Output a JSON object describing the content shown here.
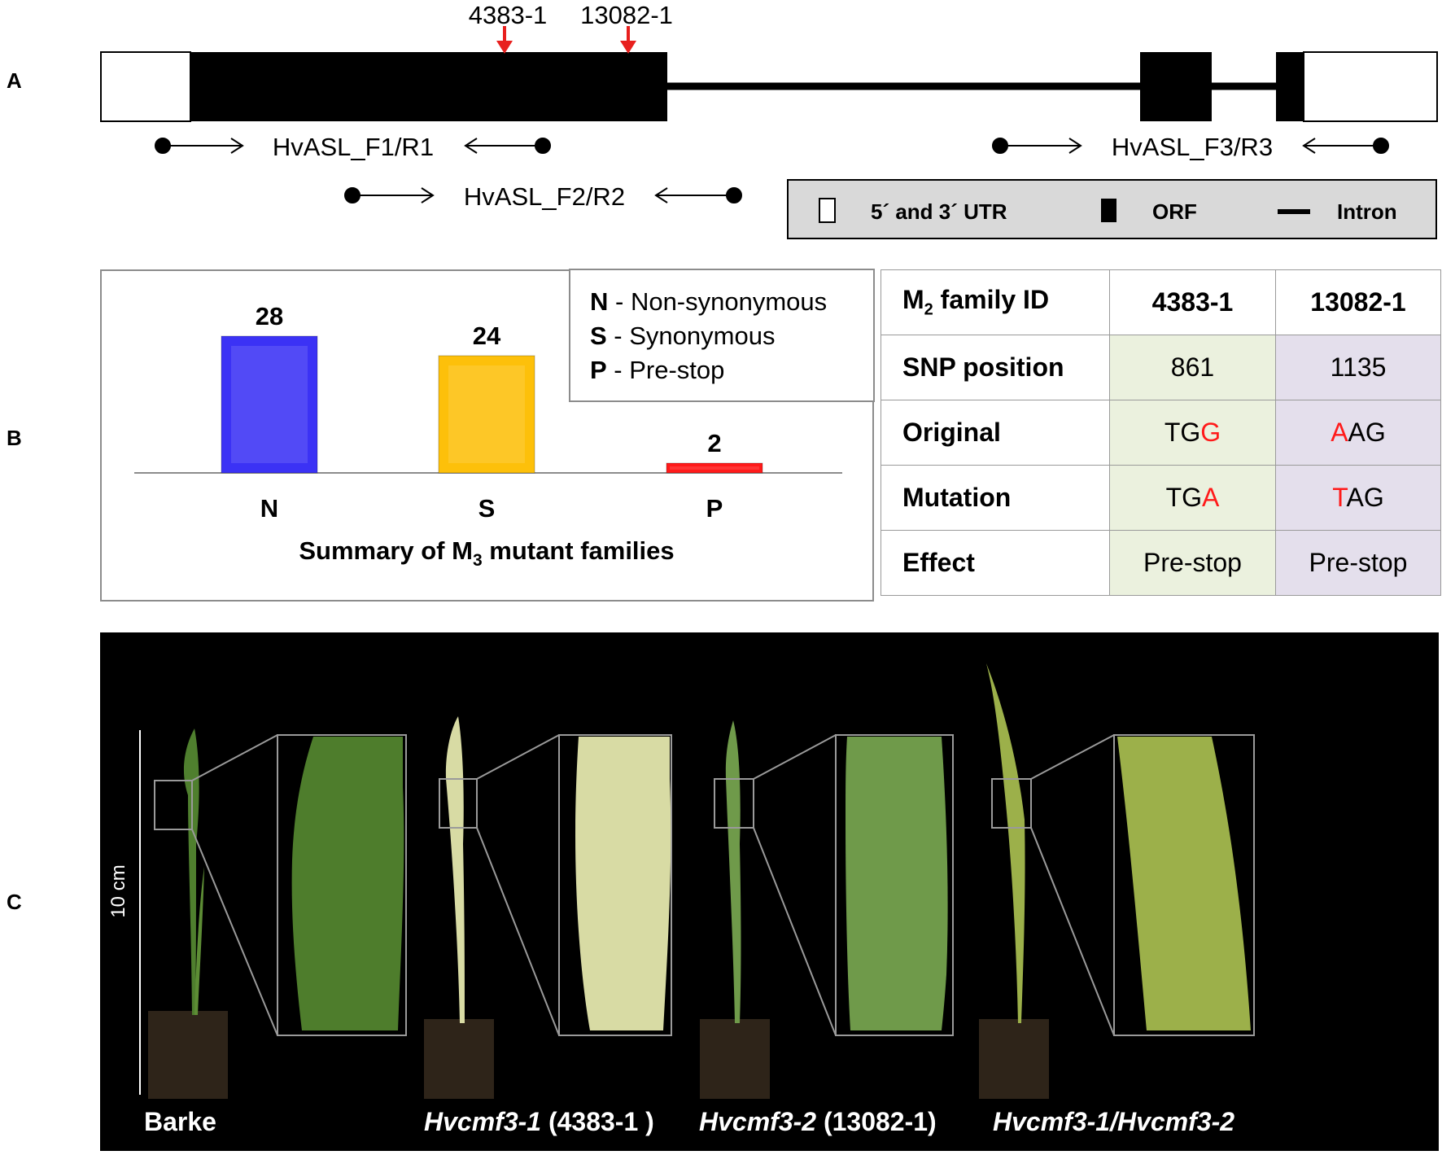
{
  "panel_labels": {
    "a": "A",
    "b": "B",
    "c": "C"
  },
  "gene_model": {
    "mutation_markers": [
      {
        "label": "4383-1",
        "color": "#e8201e"
      },
      {
        "label": "13082-1",
        "color": "#e8201e"
      }
    ],
    "primers": [
      "HvASL_F1/R1",
      "HvASL_F2/R2",
      "HvASL_F3/R3"
    ],
    "legend": {
      "utr": "5´ and 3´ UTR",
      "orf": "ORF",
      "intron": "Intron"
    },
    "colors": {
      "legend_bg": "#d9d9d9",
      "orf": "#000000",
      "utr": "#ffffff"
    }
  },
  "chart_data": {
    "type": "bar",
    "categories": [
      "N",
      "S",
      "P"
    ],
    "values": [
      28,
      24,
      2
    ],
    "ylim": [
      0,
      30
    ],
    "xlabel": "Summary of M3 mutant families",
    "xlabel_parts": {
      "main": "Summary of M",
      "sub": "3",
      "rest": " mutant families"
    },
    "colors": [
      "#3b32f5",
      "#fdc00a",
      "#ff1a1a"
    ],
    "legend": [
      {
        "key": "N",
        "desc": " - Non-synonymous"
      },
      {
        "key": "S",
        "desc": " - Synonymous"
      },
      {
        "key": "P",
        "desc": " - Pre-stop"
      }
    ],
    "legend_position": "top-right",
    "grid": false
  },
  "snp_table": {
    "header": {
      "label_main": "M",
      "label_sub": "2",
      "label_rest": " family ID",
      "col1": "4383-1",
      "col2": "13082-1"
    },
    "rows": [
      {
        "label": "SNP position",
        "c1": [
          "861",
          "",
          ""
        ],
        "c2": [
          "1135",
          "",
          ""
        ]
      },
      {
        "label": "Original",
        "c1": [
          "TG",
          "G",
          ""
        ],
        "c2": [
          "",
          "A",
          "AG"
        ]
      },
      {
        "label": "Mutation",
        "c1": [
          "TG",
          "A",
          ""
        ],
        "c2": [
          "",
          "T",
          "AG"
        ]
      },
      {
        "label": "Effect",
        "c1": [
          "Pre-stop",
          "",
          ""
        ],
        "c2": [
          "Pre-stop",
          "",
          ""
        ]
      }
    ],
    "colors": {
      "col1_bg": "#ebf1de",
      "col2_bg": "#e4dfec",
      "highlight": "#ff1a1a"
    }
  },
  "photos": {
    "scale_label": "10 cm",
    "captions": [
      {
        "italic": "",
        "plain": "Barke"
      },
      {
        "italic": "Hvcmf3-1",
        "plain": " (4383-1 )"
      },
      {
        "italic": "Hvcmf3-2",
        "plain": " (13082-1)"
      },
      {
        "italic": "Hvcmf3-1/Hvcmf3-2",
        "plain": ""
      }
    ],
    "leaf_colors": [
      "#4e7d2c",
      "#d8dba4",
      "#6f9a4a",
      "#9cb04a"
    ]
  }
}
